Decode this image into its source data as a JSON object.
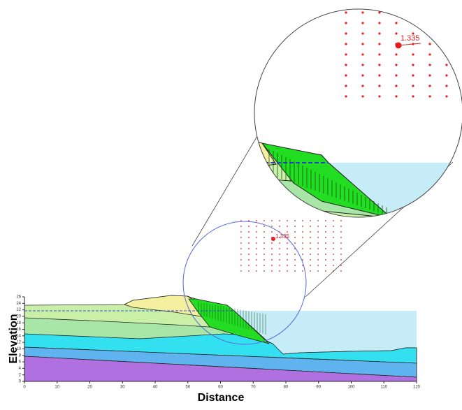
{
  "chart_data": {
    "type": "slope-stability",
    "x_label": "Distance",
    "y_label": "Elevation",
    "xlim": [
      0,
      120
    ],
    "xticks": [
      0,
      10,
      20,
      30,
      40,
      50,
      60,
      70,
      80,
      90,
      100,
      110,
      120
    ],
    "ylim": [
      0,
      26
    ],
    "yticks": [
      0,
      2,
      4,
      6,
      8,
      10,
      12,
      14,
      16,
      18,
      20,
      22,
      24,
      26
    ],
    "factor_of_safety": {
      "value": 1.335,
      "label": "1.335"
    }
  }
}
